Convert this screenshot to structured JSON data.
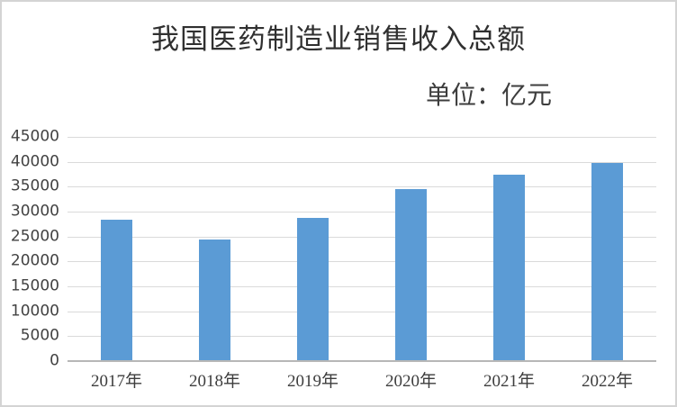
{
  "chart_data": {
    "type": "bar",
    "title": "我国医药制造业销售收入总额",
    "unit_label": "单位：亿元",
    "categories": [
      "2017年",
      "2018年",
      "2019年",
      "2020年",
      "2021年",
      "2022年"
    ],
    "values": [
      28200,
      24300,
      28500,
      34300,
      37200,
      39500
    ],
    "ylim": [
      0,
      45000
    ],
    "yticks": [
      0,
      5000,
      10000,
      15000,
      20000,
      25000,
      30000,
      35000,
      40000,
      45000
    ],
    "grid": true,
    "legend": "none",
    "colors": {
      "bar": "#5B9BD5",
      "gridline": "#DADADA",
      "axis_line": "#B7B7B7",
      "axis_text": "#424242",
      "title_text": "#303030"
    }
  }
}
